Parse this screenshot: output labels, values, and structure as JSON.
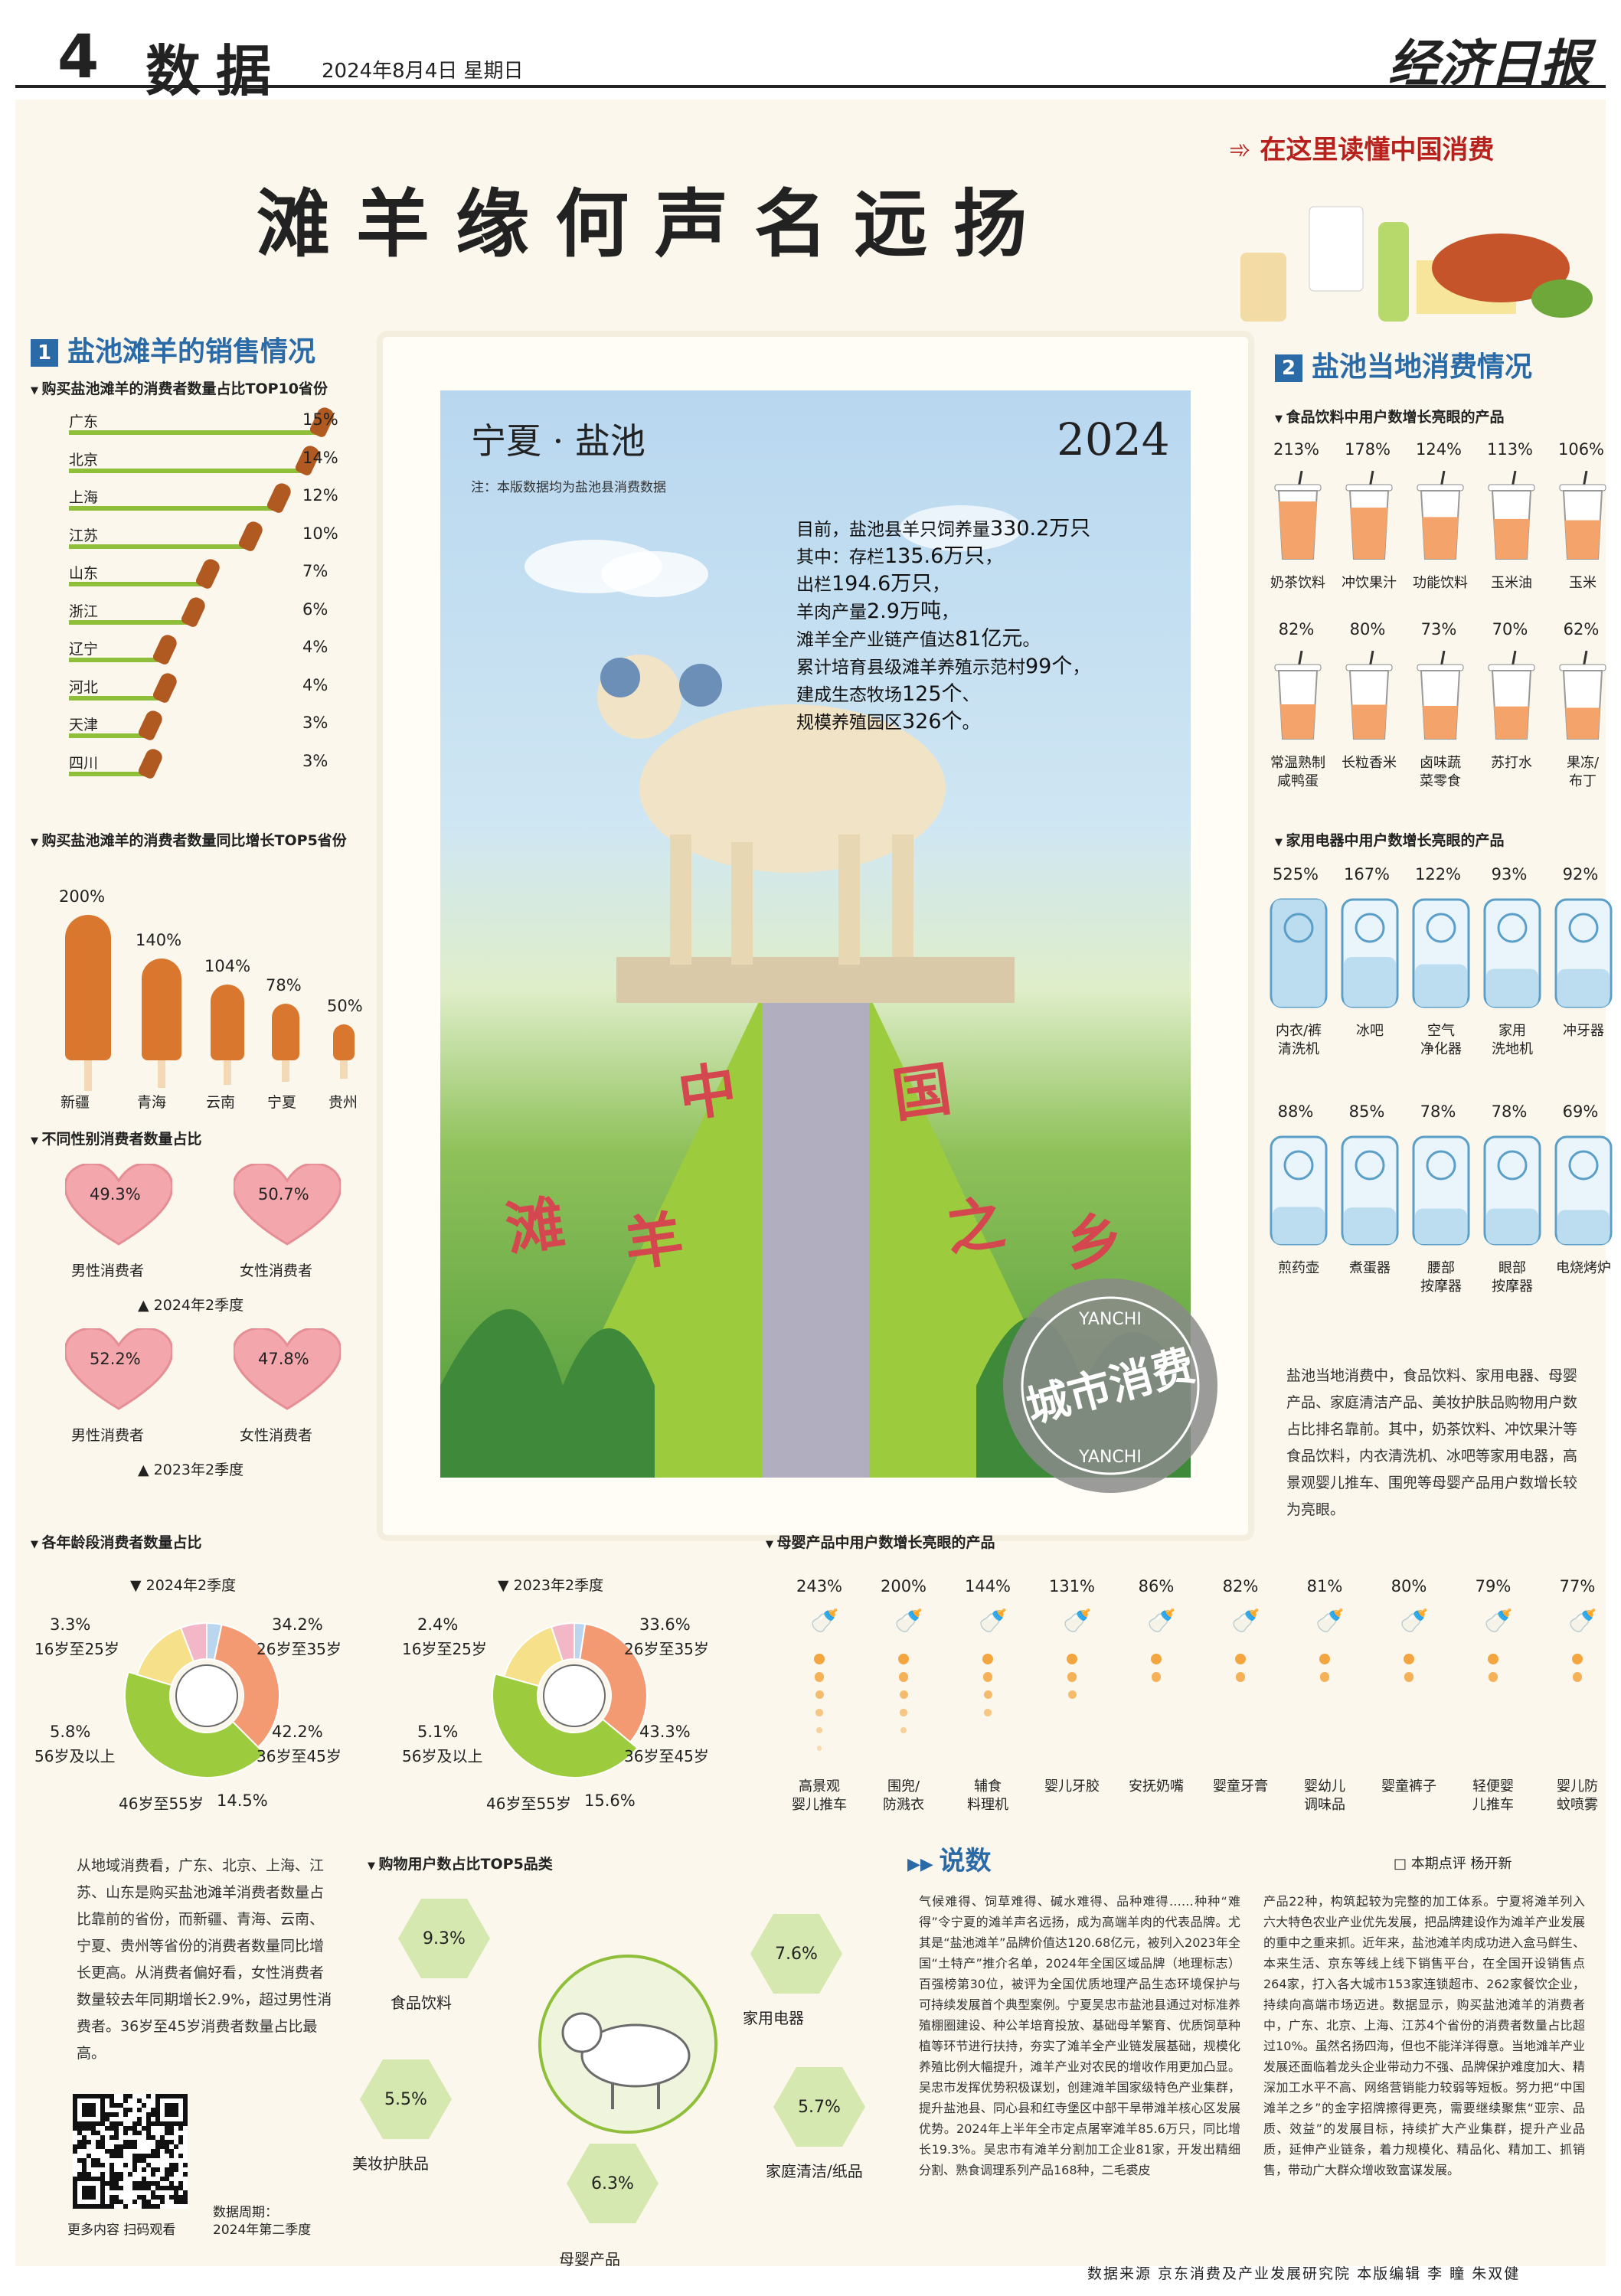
{
  "header": {
    "page_no": "4",
    "section": "数据",
    "date": "2024年8月4日   星期日",
    "logo": "经济日报"
  },
  "title": "滩羊缘何声名远扬",
  "banner": "在这里读懂中国消费",
  "sec1": {
    "num": "1",
    "title": "盐池滩羊的销售情况",
    "top10_title": "购买盐池滩羊的消费者数量占比TOP10省份",
    "growth_title": "购买盐池滩羊的消费者数量同比增长TOP5省份",
    "gender_title": "不同性别消费者数量占比",
    "age_title": "各年龄段消费者数量占比"
  },
  "sec2": {
    "num": "2",
    "title": "盐池当地消费情况",
    "food_title": "食品饮料中用户数增长亮眼的产品",
    "appliance_title": "家用电器中用户数增长亮眼的产品",
    "maternal_title": "母婴产品中用户数增长亮眼的产品",
    "paragraph": "盐池当地消费中，食品饮料、家用电器、母婴产品、家庭清洁产品、美妆护肤品购物用户数占比排名靠前。其中，奶茶饮料、冲饮果汁等食品饮料，内衣清洗机、冰吧等家用电器，高景观婴儿推车、围兜等母婴产品用户数增长较为亮眼。"
  },
  "stamp": {
    "place": "宁夏 · 盐池",
    "year": "2024",
    "note": "注：本版数据均为盐池县消费数据",
    "facts": [
      {
        "pre": "目前，盐池县羊只饲养量",
        "num": "330.2万只",
        "post": ""
      },
      {
        "pre": "其中：存栏",
        "num": "135.6万只",
        "post": "，"
      },
      {
        "pre": "出栏",
        "num": "194.6万只",
        "post": "，"
      },
      {
        "pre": "羊肉产量",
        "num": "2.9万吨",
        "post": "，"
      },
      {
        "pre": "滩羊全产业链产值达",
        "num": "81亿元",
        "post": "。"
      },
      {
        "pre": "累计培育县级滩羊养殖示范村",
        "num": "99个",
        "post": "，"
      },
      {
        "pre": "建成生态牧场",
        "num": "125个",
        "post": "、"
      },
      {
        "pre": "规模养殖园区",
        "num": "326个",
        "post": "。"
      }
    ],
    "slogan": [
      "中",
      "国",
      "滩",
      "羊",
      "之",
      "乡"
    ],
    "seal_text": "城市消费",
    "seal_sub": "YANCHI"
  },
  "left_paragraph": "从地域消费看，广东、北京、上海、江苏、山东是购买盐池滩羊消费者数量占比靠前的省份，而新疆、青海、云南、宁夏、贵州等省份的消费者数量同比增长更高。从消费者偏好看，女性消费者数量较去年同期增长2.9%，超过男性消费者。36岁至45岁消费者数量占比最高。",
  "qr": {
    "caption": "更多内容 扫码观看"
  },
  "period": {
    "label": "数据周期：",
    "value": "2024年第二季度"
  },
  "hex_title": "购物用户数占比TOP5品类",
  "comment": {
    "title": "说数",
    "byline": "□ 本期点评   杨开新",
    "col1": "气候难得、饲草难得、碱水难得、品种难得……种种“难得”令宁夏的滩羊声名远扬，成为高端羊肉的代表品牌。尤其是“盐池滩羊”品牌价值达120.68亿元，被列入2023年全国“土特产”推介名单，2024年全国区域品牌（地理标志）百强榜第30位，被评为全国优质地理产品生态环境保护与可持续发展首个典型案例。宁夏吴忠市盐池县通过对标准养殖棚圈建设、种公羊培育投放、基础母羊繁育、优质饲草种植等环节进行扶持，夯实了滩羊全产业链发展基础，规模化养殖比例大幅提升，滩羊产业对农民的增收作用更加凸显。吴忠市发挥优势积极谋划，创建滩羊国家级特色产业集群，提升盐池县、同心县和红寺堡区中部干旱带滩羊核心区发展优势。2024年上半年全市定点屠宰滩羊85.6万只，同比增长19.3%。吴忠市有滩羊分割加工企业81家，开发出精细分割、熟食调理系列产品168种，二毛裘皮",
    "col2": "产品22种，构筑起较为完整的加工体系。宁夏将滩羊列入六大特色农业产业优先发展，把品牌建设作为滩羊产业发展的重中之重来抓。近年来，盐池滩羊肉成功进入盒马鲜生、本来生活、京东等线上线下销售平台，在全国开设销售点264家，打入各大城市153家连锁超市、262家餐饮企业，持续向高端市场迈进。数据显示，购买盐池滩羊的消费者中，广东、北京、上海、江苏4个省份的消费者数量占比超过10%。虽然名扬四海，但也不能洋洋得意。当地滩羊产业发展还面临着龙头企业带动力不强、品牌保护难度加大、精深加工水平不高、网络营销能力较弱等短板。努力把“中国滩羊之乡”的金字招牌擦得更亮，需要继续聚焦“亚宗、品质、效益”的发展目标，持续扩大产业集群，提升产业品质，延伸产业链条，着力规模化、精品化、精加工、抓销售，带动广大群众增收致富谋发展。"
  },
  "footer": "数据来源  京东消费及产业发展研究院  本版编辑  李  瞳  朱双健",
  "colors": {
    "accent": "#2a6aa6",
    "green": "#8fbf3a",
    "meat": "#b05a22",
    "red": "#b8201c"
  },
  "chart_data": [
    {
      "type": "bar",
      "title": "购买盐池滩羊的消费者数量占比TOP10省份",
      "categories": [
        "广东",
        "北京",
        "上海",
        "江苏",
        "山东",
        "浙江",
        "辽宁",
        "河北",
        "天津",
        "四川"
      ],
      "values": [
        15,
        14,
        12,
        10,
        7,
        6,
        4,
        4,
        3,
        3
      ],
      "labels": [
        "15%",
        "14%",
        "12%",
        "10%",
        "7%",
        "6%",
        "4%",
        "4%",
        "3%",
        "3%"
      ],
      "unit": "%"
    },
    {
      "type": "bar",
      "title": "购买盐池滩羊的消费者数量同比增长TOP5省份",
      "categories": [
        "新疆",
        "青海",
        "云南",
        "宁夏",
        "贵州"
      ],
      "values": [
        200,
        140,
        104,
        78,
        50
      ],
      "labels": [
        "200%",
        "140%",
        "104%",
        "78%",
        "50%"
      ],
      "unit": "%"
    },
    {
      "type": "pie",
      "title": "不同性别消费者数量占比",
      "groups": [
        {
          "period": "2024年2季度",
          "slices": [
            {
              "name": "男性消费者",
              "value": 49.3,
              "label": "49.3%"
            },
            {
              "name": "女性消费者",
              "value": 50.7,
              "label": "50.7%"
            }
          ]
        },
        {
          "period": "2023年2季度",
          "slices": [
            {
              "name": "男性消费者",
              "value": 52.2,
              "label": "52.2%"
            },
            {
              "name": "女性消费者",
              "value": 47.8,
              "label": "47.8%"
            }
          ]
        }
      ]
    },
    {
      "type": "pie",
      "title": "各年龄段消费者数量占比",
      "groups": [
        {
          "period": "2024年2季度",
          "slices": [
            {
              "name": "16岁至25岁",
              "value": 3.3,
              "label": "3.3%",
              "color": "#b9d6ee"
            },
            {
              "name": "26岁至35岁",
              "value": 34.2,
              "label": "34.2%",
              "color": "#f39a72"
            },
            {
              "name": "36岁至45岁",
              "value": 42.2,
              "label": "42.2%",
              "color": "#9ccb3e"
            },
            {
              "name": "46岁至55岁",
              "value": 14.5,
              "label": "14.5%",
              "color": "#f6e08a"
            },
            {
              "name": "56岁及以上",
              "value": 5.8,
              "label": "5.8%",
              "color": "#f3b8c8"
            }
          ]
        },
        {
          "period": "2023年2季度",
          "slices": [
            {
              "name": "16岁至25岁",
              "value": 2.4,
              "label": "2.4%",
              "color": "#b9d6ee"
            },
            {
              "name": "26岁至35岁",
              "value": 33.6,
              "label": "33.6%",
              "color": "#f39a72"
            },
            {
              "name": "36岁至45岁",
              "value": 43.3,
              "label": "43.3%",
              "color": "#9ccb3e"
            },
            {
              "name": "46岁至55岁",
              "value": 15.6,
              "label": "15.6%",
              "color": "#f6e08a"
            },
            {
              "name": "56岁及以上",
              "value": 5.1,
              "label": "5.1%",
              "color": "#f3b8c8"
            }
          ]
        }
      ]
    },
    {
      "type": "bar",
      "title": "食品饮料中用户数增长亮眼的产品",
      "categories": [
        "奶茶饮料",
        "冲饮果汁",
        "功能饮料",
        "玉米油",
        "玉米",
        "常温熟制咸鸭蛋",
        "长粒香米",
        "卤味蔬菜零食",
        "苏打水",
        "果冻/布丁"
      ],
      "values": [
        213,
        178,
        124,
        113,
        106,
        82,
        80,
        73,
        70,
        62
      ],
      "labels": [
        "213%",
        "178%",
        "124%",
        "113%",
        "106%",
        "82%",
        "80%",
        "73%",
        "70%",
        "62%"
      ],
      "display_names": [
        "奶茶饮料",
        "冲饮果汁",
        "功能饮料",
        "玉米油",
        "玉米",
        "常温熟制\n咸鸭蛋",
        "长粒香米",
        "卤味蔬\n菜零食",
        "苏打水",
        "果冻/\n布丁"
      ],
      "unit": "%"
    },
    {
      "type": "bar",
      "title": "家用电器中用户数增长亮眼的产品",
      "categories": [
        "内衣/裤清洗机",
        "冰吧",
        "空气净化器",
        "家用洗地机",
        "冲牙器",
        "煎药壶",
        "煮蛋器",
        "腰部按摩器",
        "眼部按摩器",
        "电烧烤炉"
      ],
      "values": [
        525,
        167,
        122,
        93,
        92,
        88,
        85,
        78,
        78,
        69
      ],
      "labels": [
        "525%",
        "167%",
        "122%",
        "93%",
        "92%",
        "88%",
        "85%",
        "78%",
        "78%",
        "69%"
      ],
      "display_names": [
        "内衣/裤\n清洗机",
        "冰吧",
        "空气\n净化器",
        "家用\n洗地机",
        "冲牙器",
        "煎药壶",
        "煮蛋器",
        "腰部\n按摩器",
        "眼部\n按摩器",
        "电烧烤炉"
      ],
      "unit": "%"
    },
    {
      "type": "bar",
      "title": "母婴产品中用户数增长亮眼的产品",
      "categories": [
        "高景观婴儿推车",
        "围兜/防溅衣",
        "辅食料理机",
        "婴儿牙胶",
        "安抚奶嘴",
        "婴童牙膏",
        "婴幼儿调味品",
        "婴童裤子",
        "轻便婴儿推车",
        "婴儿防蚊喷雾"
      ],
      "values": [
        243,
        200,
        144,
        131,
        86,
        82,
        81,
        80,
        79,
        77
      ],
      "labels": [
        "243%",
        "200%",
        "144%",
        "131%",
        "86%",
        "82%",
        "81%",
        "80%",
        "79%",
        "77%"
      ],
      "display_names": [
        "高景观\n婴儿推车",
        "围兜/\n防溅衣",
        "辅食\n料理机",
        "婴儿牙胶",
        "安抚奶嘴",
        "婴童牙膏",
        "婴幼儿\n调味品",
        "婴童裤子",
        "轻便婴\n儿推车",
        "婴儿防\n蚊喷雾"
      ],
      "unit": "%"
    },
    {
      "type": "bar",
      "title": "购物用户数占比TOP5品类",
      "categories": [
        "食品饮料",
        "家用电器",
        "美妆护肤品",
        "家庭清洁/纸品",
        "母婴产品"
      ],
      "values": [
        9.3,
        7.6,
        5.5,
        5.7,
        6.3
      ],
      "labels": [
        "9.3%",
        "7.6%",
        "5.5%",
        "5.7%",
        "6.3%"
      ],
      "unit": "%"
    }
  ]
}
